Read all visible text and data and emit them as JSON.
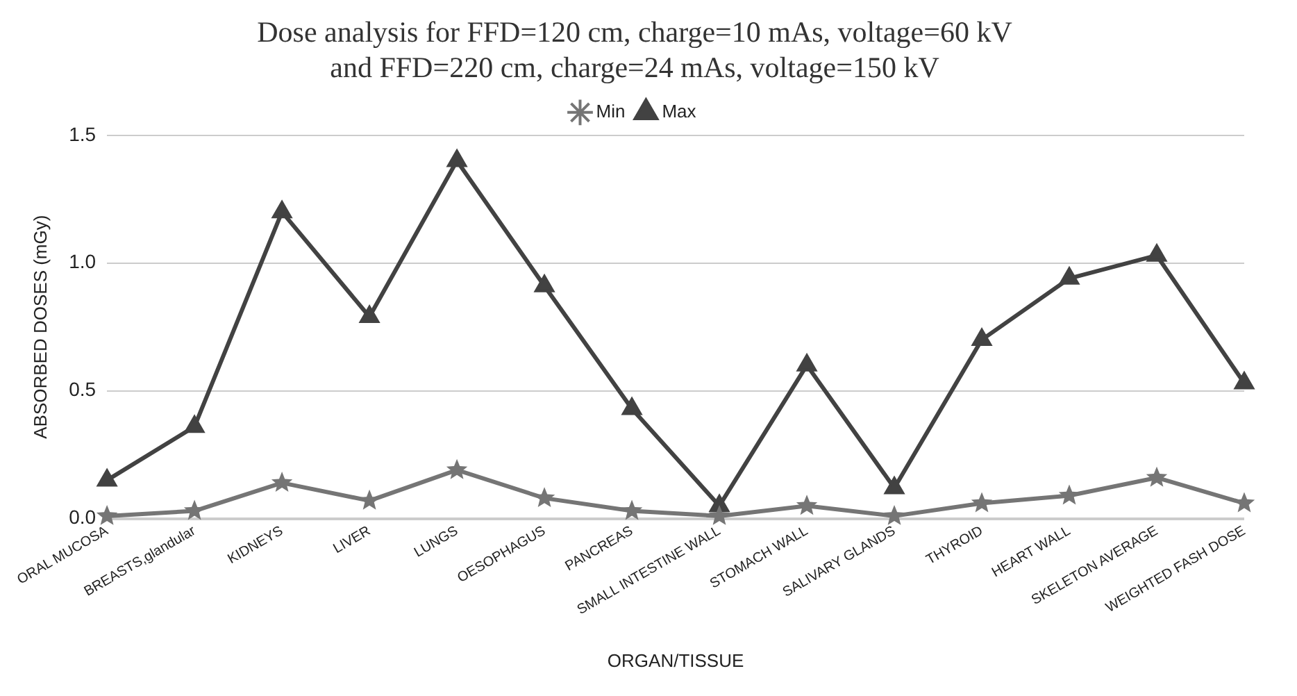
{
  "chart_data": {
    "type": "line",
    "title": "Dose analysis for FFD=120 cm, charge=10 mAs, voltage=60 kV\nand FFD=220 cm, charge=24 mAs, voltage=150 kV",
    "xlabel": "ORGAN/TISSUE",
    "ylabel": "ABSORBED DOSES (mGy)",
    "categories": [
      "ORAL MUCOSA",
      "BREASTS,glandular",
      "KIDNEYS",
      "LIVER",
      "LUNGS",
      "OESOPHAGUS",
      "PANCREAS",
      "SMALL INTESTINE WALL",
      "STOMACH WALL",
      "SALIVARY GLANDS",
      "THYROID",
      "HEART WALL",
      "SKELETON AVERAGE",
      "WEIGHTED FASH DOSE"
    ],
    "series": [
      {
        "name": "Min",
        "color": "#757575",
        "marker": "star",
        "values": [
          0.01,
          0.03,
          0.14,
          0.07,
          0.19,
          0.08,
          0.03,
          0.01,
          0.05,
          0.01,
          0.06,
          0.09,
          0.16,
          0.06
        ]
      },
      {
        "name": "Max",
        "color": "#424242",
        "marker": "triangle",
        "values": [
          0.15,
          0.36,
          1.2,
          0.79,
          1.4,
          0.91,
          0.43,
          0.05,
          0.6,
          0.12,
          0.7,
          0.94,
          1.03,
          0.53
        ]
      }
    ],
    "ylim": [
      0,
      1.5
    ],
    "yticks": [
      {
        "value": 0,
        "label": "0.0"
      },
      {
        "value": 0.5,
        "label": "0.5"
      },
      {
        "value": 1,
        "label": "1.0"
      },
      {
        "value": 1.5,
        "label": "1.5"
      }
    ],
    "grid": "y",
    "legend": "top"
  }
}
